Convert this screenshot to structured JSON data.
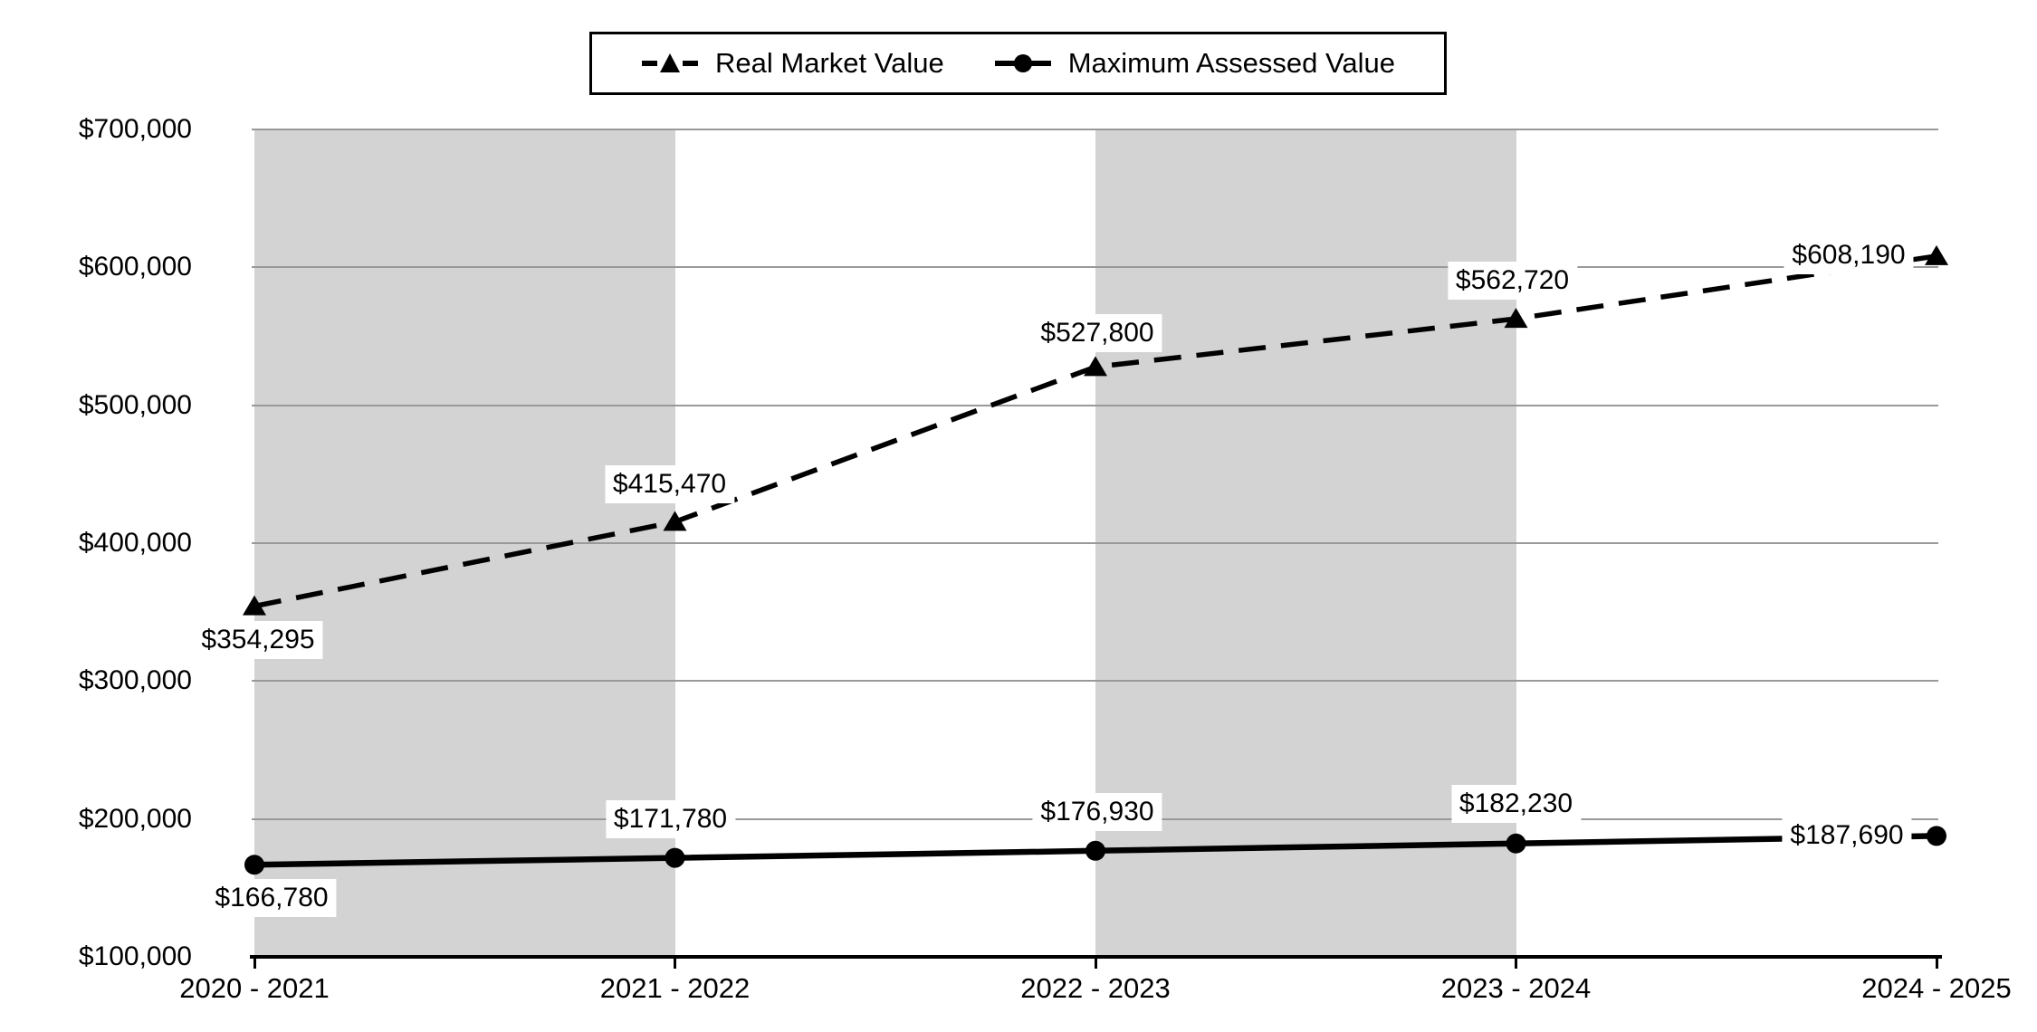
{
  "chart_data": {
    "type": "line",
    "title": "",
    "categories": [
      "2020 - 2021",
      "2021 - 2022",
      "2022 - 2023",
      "2023 - 2024",
      "2024 - 2025"
    ],
    "series": [
      {
        "name": "Real Market Value",
        "marker": "triangle",
        "line_style": "dashed",
        "color": "#000000",
        "values": [
          354295,
          415470,
          527800,
          562720,
          608190
        ],
        "point_labels": [
          "$354,295",
          "$415,470",
          "$527,800",
          "$562,720",
          "$608,190"
        ]
      },
      {
        "name": "Maximum Assessed Value",
        "marker": "circle",
        "line_style": "solid",
        "color": "#000000",
        "values": [
          166780,
          171780,
          176930,
          182230,
          187690
        ],
        "point_labels": [
          "$166,780",
          "$171,780",
          "$176,930",
          "$182,230",
          "$187,690"
        ]
      }
    ],
    "y_axis": {
      "min": 100000,
      "max": 700000,
      "step": 100000,
      "tick_labels": [
        "$100,000",
        "$200,000",
        "$300,000",
        "$400,000",
        "$500,000",
        "$600,000",
        "$700,000"
      ]
    },
    "x_axis": {
      "tick_labels": [
        "2020 - 2021",
        "2021 - 2022",
        "2022 - 2023",
        "2023 - 2024",
        "2024 - 2025"
      ]
    },
    "legend": {
      "position": "top-center",
      "entries": [
        "Real Market Value",
        "Maximum Assessed Value"
      ]
    },
    "grid": {
      "horizontal": true,
      "gridline_color": "#999999"
    },
    "plot_background": {
      "band_color": "#d3d3d3",
      "shaded_band_category_ranges": [
        [
          0,
          1
        ],
        [
          2,
          3
        ]
      ]
    }
  },
  "colors": {
    "background": "#ffffff",
    "text": "#000000",
    "series_line": "#000000",
    "band": "#d3d3d3",
    "gridline": "#999999",
    "axis": "#000000",
    "label_background": "#ffffff"
  }
}
